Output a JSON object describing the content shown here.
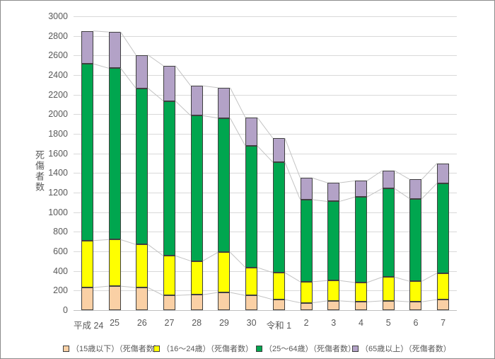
{
  "chart_data": {
    "type": "bar",
    "stacked": true,
    "title": "",
    "ylabel": "死傷者数",
    "xlabel": "",
    "ylim": [
      0,
      3000
    ],
    "ytick_step": 200,
    "grid": true,
    "legend_position": "bottom",
    "categories": [
      "平成 24",
      "25",
      "26",
      "27",
      "28",
      "29",
      "30",
      "令和 1",
      "2",
      "3",
      "4",
      "5",
      "6",
      "7"
    ],
    "series": [
      {
        "name": "（15歳以下）（死傷者数）",
        "color": "#FAD0A5",
        "values": [
          230,
          245,
          230,
          150,
          157,
          181,
          150,
          108,
          75,
          95,
          85,
          95,
          85,
          108
        ]
      },
      {
        "name": "（16～24歳）（死傷者数）",
        "color": "#FFFF00",
        "values": [
          480,
          475,
          440,
          405,
          345,
          410,
          285,
          275,
          215,
          207,
          197,
          243,
          209,
          271
        ]
      },
      {
        "name": "（25～64歳）（死傷者数）",
        "color": "#00A64F",
        "values": [
          1805,
          1750,
          1595,
          1580,
          1483,
          1370,
          1240,
          1127,
          838,
          808,
          873,
          905,
          843,
          918
        ]
      },
      {
        "name": "（65歳以上）（死傷者数）",
        "color": "#B3A2C7",
        "values": [
          335,
          370,
          340,
          360,
          305,
          310,
          290,
          245,
          222,
          190,
          165,
          182,
          197,
          203
        ]
      }
    ]
  },
  "colors": {
    "gridline": "#D9D9D9",
    "axis_line": "#BFBFBF",
    "segment_border": "#404040",
    "series_connector": "#C3C3C3",
    "tick_text": "#595959",
    "frame_border": "#8C8C8C",
    "background": "#FFFFFF"
  }
}
